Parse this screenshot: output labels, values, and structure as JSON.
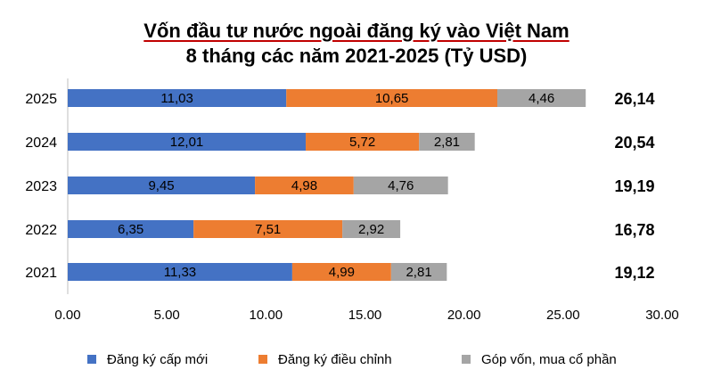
{
  "chart_data": {
    "type": "bar",
    "orientation": "horizontal",
    "stacked": true,
    "title_line1": "Vốn đầu tư nước ngoài đăng ký vào Việt Nam",
    "title_line2": "8 tháng các năm 2021-2025 (Tỷ USD)",
    "categories": [
      "2025",
      "2024",
      "2023",
      "2022",
      "2021"
    ],
    "series": [
      {
        "name": "Đăng ký cấp mới",
        "color": "#4472c4",
        "values": [
          11.03,
          12.01,
          9.45,
          6.35,
          11.33
        ],
        "labels": [
          "11,03",
          "12,01",
          "9,45",
          "6,35",
          "11,33"
        ]
      },
      {
        "name": "Đăng ký điều chỉnh",
        "color": "#ed7d31",
        "values": [
          10.65,
          5.72,
          4.98,
          7.51,
          4.99
        ],
        "labels": [
          "10,65",
          "5,72",
          "4,98",
          "7,51",
          "4,99"
        ]
      },
      {
        "name": "Góp vốn, mua cổ phần",
        "color": "#a5a5a5",
        "values": [
          4.46,
          2.81,
          4.76,
          2.92,
          2.81
        ],
        "labels": [
          "4,46",
          "2,81",
          "4,76",
          "2,92",
          "2,81"
        ]
      }
    ],
    "totals": [
      "26,14",
      "20,54",
      "19,19",
      "16,78",
      "19,12"
    ],
    "xlim": [
      0,
      30
    ],
    "xticks": [
      0,
      5,
      10,
      15,
      20,
      25,
      30
    ],
    "xtick_labels": [
      "0.00",
      "5.00",
      "10.00",
      "15.00",
      "20.00",
      "25.00",
      "30.00"
    ],
    "grid": false,
    "legend_position": "bottom"
  }
}
